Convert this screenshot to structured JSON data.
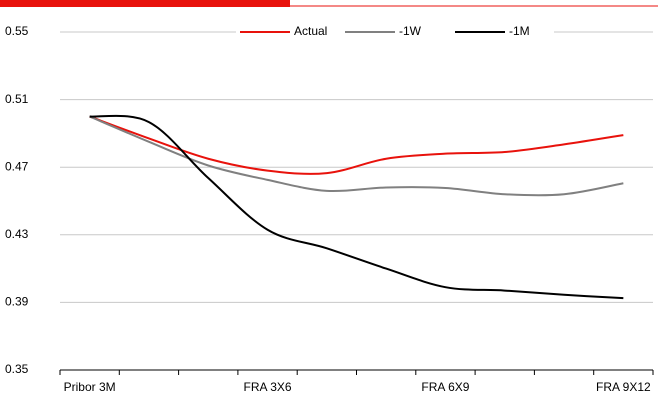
{
  "chart_data": {
    "type": "line",
    "categories": [
      "Pribor 3M",
      null,
      null,
      "FRA 3X6",
      null,
      null,
      "FRA 6X9",
      null,
      null,
      "FRA 9X12"
    ],
    "series": [
      {
        "name": "Actual",
        "color": "#e8120c",
        "values": [
          0.5,
          0.487,
          0.475,
          0.468,
          0.4665,
          0.475,
          0.478,
          0.479,
          0.4835,
          0.489
        ]
      },
      {
        "name": "-1W",
        "color": "#808080",
        "values": [
          0.5,
          0.485,
          0.471,
          0.4625,
          0.456,
          0.458,
          0.4577,
          0.454,
          0.454,
          0.4605
        ]
      },
      {
        "name": "-1M",
        "color": "#000000",
        "values": [
          0.5,
          0.4967,
          0.4636,
          0.433,
          0.422,
          0.41,
          0.399,
          0.397,
          0.3945,
          0.3925
        ]
      }
    ],
    "ylim": [
      0.35,
      0.55
    ],
    "yticks": [
      0.35,
      0.39,
      0.43,
      0.47,
      0.51,
      0.55
    ],
    "grid": true,
    "legend": "top"
  }
}
